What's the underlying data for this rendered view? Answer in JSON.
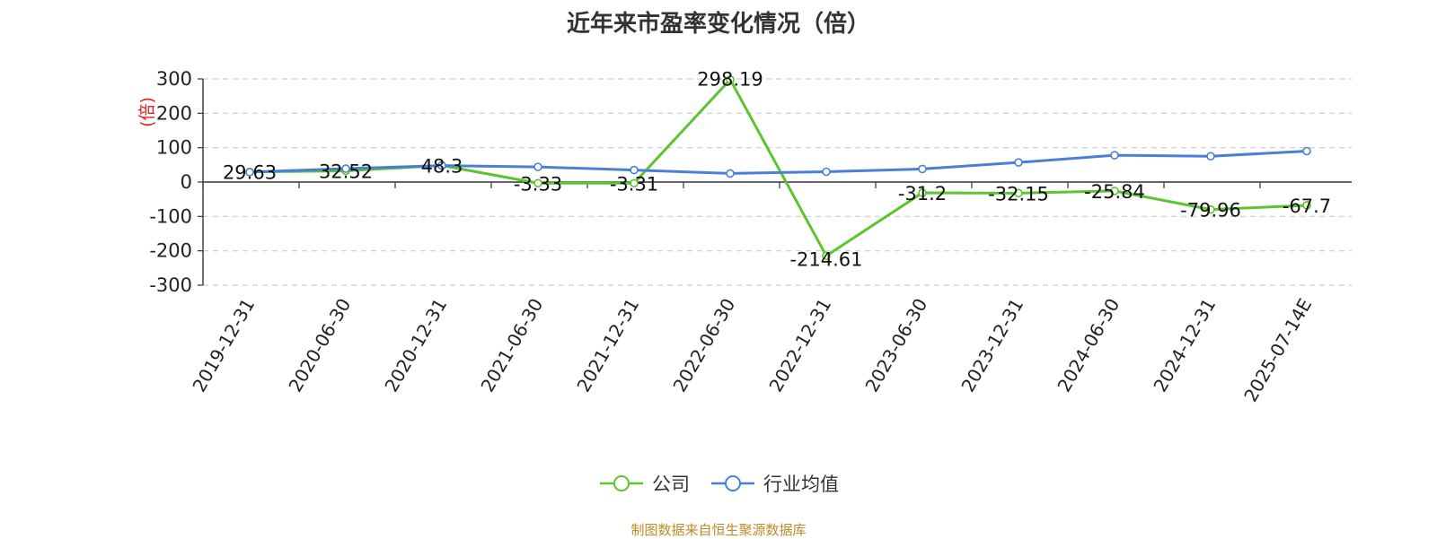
{
  "chart_data": {
    "type": "line",
    "title": "近年来市盈率变化情况（倍）",
    "ylabel": "(倍)",
    "xlabel": "",
    "ylim": [
      -300,
      300
    ],
    "yticks": [
      300,
      200,
      100,
      0,
      -100,
      -200,
      -300
    ],
    "categories": [
      "2019-12-31",
      "2020-06-30",
      "2020-12-31",
      "2021-06-30",
      "2021-12-31",
      "2022-06-30",
      "2022-12-31",
      "2023-06-30",
      "2023-12-31",
      "2024-06-30",
      "2024-12-31",
      "2025-07-14E"
    ],
    "series": [
      {
        "name": "公司",
        "color": "#5cc52e",
        "values": [
          29.63,
          32.52,
          48.3,
          -3.33,
          -3.31,
          298.19,
          -214.61,
          -31.2,
          -32.15,
          -25.84,
          -79.96,
          -67.7
        ],
        "labels": [
          "29.63",
          "32.52",
          "48.3",
          "-3.33",
          "-3.31",
          "298.19",
          "-214.61",
          "-31.2",
          "-32.15",
          "-25.84",
          "-79.96",
          "-67.7"
        ]
      },
      {
        "name": "行业均值",
        "color": "#4a7fd8",
        "values": [
          29,
          39,
          48,
          44,
          35,
          25,
          30,
          38,
          57,
          78,
          75,
          90
        ]
      }
    ],
    "grid": true,
    "legend_position": "bottom-center"
  },
  "source_note": "制图数据来自恒生聚源数据库"
}
